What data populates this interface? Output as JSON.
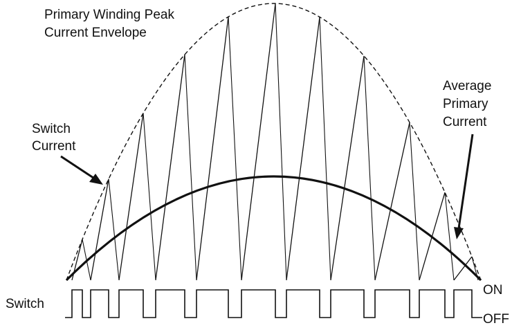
{
  "labels": {
    "envelope_line1": "Primary Winding Peak",
    "envelope_line2": "Current Envelope",
    "switch_current_line1": "Switch",
    "switch_current_line2": "Current",
    "average_line1": "Average",
    "average_line2": "Primary",
    "average_line3": "Current",
    "switch_label": "Switch",
    "on_label": "ON",
    "off_label": "OFF"
  },
  "colors": {
    "ink": "#111111",
    "background": "#ffffff"
  }
}
